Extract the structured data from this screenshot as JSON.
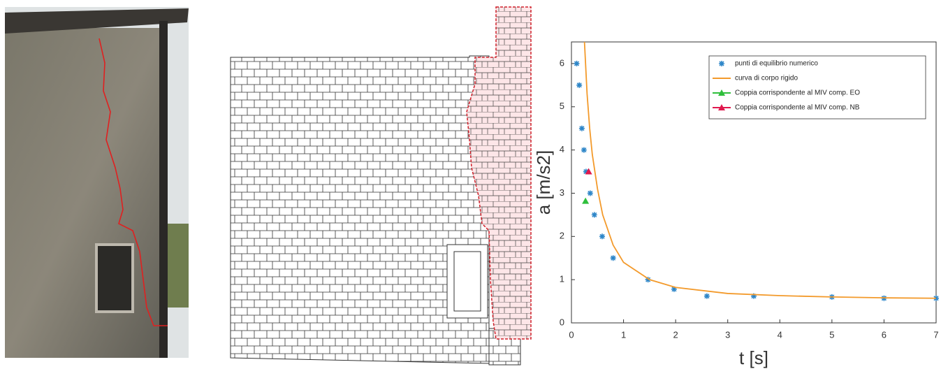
{
  "chart_data": {
    "type": "scatter",
    "xlabel": "t [s]",
    "ylabel": "a [m/s2]",
    "xlim": [
      0,
      7
    ],
    "ylim": [
      0,
      6.5
    ],
    "xticks": [
      0,
      1,
      2,
      3,
      4,
      5,
      6,
      7
    ],
    "yticks": [
      0,
      1,
      2,
      3,
      4,
      5,
      6
    ],
    "legend": "upper right",
    "series": [
      {
        "name": "punti di equilibrio numerico",
        "color": "#2e86c8",
        "marker": "asterisk",
        "x": [
          0.1,
          0.15,
          0.2,
          0.24,
          0.28,
          0.36,
          0.44,
          0.59,
          0.8,
          1.47,
          1.97,
          2.6,
          3.5,
          5.0,
          6.0,
          7.0
        ],
        "values": [
          6.0,
          5.5,
          4.5,
          4.0,
          3.5,
          3.0,
          2.5,
          2.0,
          1.5,
          1.0,
          0.78,
          0.62,
          0.62,
          0.6,
          0.57,
          0.57
        ]
      },
      {
        "name": "curva di corpo rigido",
        "color": "#f39a2b",
        "marker": "line",
        "x": [
          0.25,
          0.3,
          0.35,
          0.4,
          0.5,
          0.6,
          0.8,
          1,
          1.5,
          2,
          3,
          4,
          5,
          6,
          7
        ],
        "values": [
          6.5,
          5.3,
          4.5,
          3.9,
          3.1,
          2.5,
          1.8,
          1.4,
          1.0,
          0.82,
          0.68,
          0.63,
          0.6,
          0.58,
          0.57
        ]
      },
      {
        "name": "Coppia corrispondente al MIV comp. EO",
        "color": "#2fbf3c",
        "marker": "triangle",
        "x": [
          0.27
        ],
        "values": [
          2.82
        ]
      },
      {
        "name": "Coppia corrispondente al MIV comp. NB",
        "color": "#e0194e",
        "marker": "triangle",
        "x": [
          0.33
        ],
        "values": [
          3.5
        ]
      }
    ]
  }
}
